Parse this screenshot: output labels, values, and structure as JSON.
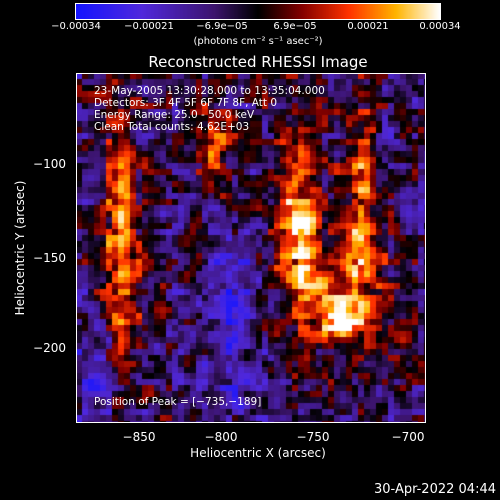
{
  "colorbar": {
    "tick_labels": [
      "−0.00034",
      "−0.00021",
      "−6.9e−05",
      "6.9e−05",
      "0.00021",
      "0.00034"
    ],
    "units": "(photons cm⁻² s⁻¹ asec⁻²)",
    "colors": [
      "#1010ff",
      "#5a2bd0",
      "#000000",
      "#7a0000",
      "#ff3000",
      "#ffb000",
      "#ffffff"
    ]
  },
  "chart_data": {
    "type": "heatmap",
    "title": "Reconstructed RHESSI Image",
    "xlabel": "Heliocentric X (arcsec)",
    "ylabel": "Heliocentric Y (arcsec)",
    "xlim": [
      -880,
      -690
    ],
    "ylim": [
      -245,
      -55
    ],
    "x_ticks": [
      -850,
      -800,
      -750,
      -700
    ],
    "y_ticks": [
      -100,
      -150,
      -200
    ],
    "x_tick_labels": [
      "−850",
      "−800",
      "−750",
      "−700"
    ],
    "y_tick_labels": [
      "−100",
      "−150",
      "−200"
    ],
    "color_range": [
      -0.00034,
      0.00034
    ],
    "peak": [
      -735,
      -189
    ],
    "grid": false
  },
  "annotations": {
    "time_range": "23-May-2005 13:30:28.000 to 13:35:04.000",
    "detectors": "Detectors: 3F 4F 5F 6F 7F 8F, Att 0",
    "energy": "Energy Range: 25.0 - 50.0 keV",
    "clean": "Clean     Total counts: 4.62E+03",
    "peak_label": "Position of Peak = [−735,−189]"
  },
  "timestamp": "30-Apr-2022 04:44"
}
